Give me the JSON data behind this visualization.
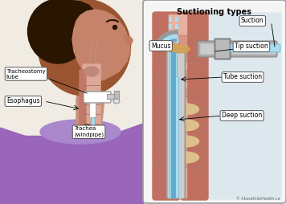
{
  "title": "Suctioning types",
  "copyright": "© AboutKidsHealth.ca",
  "labels_left": {
    "tracheostomy_tube": "Tracheostomy\ntube",
    "esophagus": "Esophagus",
    "trachea": "Trachea\n(windpipe)"
  },
  "labels_right": {
    "suction": "Suction",
    "mucus": "Mucus",
    "tip_suction": "Tip suction",
    "tube_suction": "Tube suction",
    "deep_suction": "Deep suction"
  },
  "bg_color": "#ffffff",
  "skin_dark": "#7a4520",
  "skin_mid": "#9a5530",
  "skin_light": "#c4836a",
  "skin_neck": "#c8907a",
  "cloth_color": "#9966bb",
  "cloth_light": "#aa88cc",
  "hair_color": "#2a1500",
  "trachea_wall": "#c07060",
  "trachea_inner_color": "#e8b0a0",
  "cartilage_color": "#e0c890",
  "tube_blue_outer": "#a8ddf0",
  "tube_blue_inner": "#60aacc",
  "tube_gray": "#999999",
  "tube_gray_dark": "#777777",
  "mucus_color": "#d4a050",
  "panel_bg": "#f5f5f5",
  "panel_border": "#999999",
  "label_bg": "#ffffff",
  "label_edge": "#555555",
  "bg_right_body": "#dde8ee",
  "dashed_color": "#aaddee"
}
